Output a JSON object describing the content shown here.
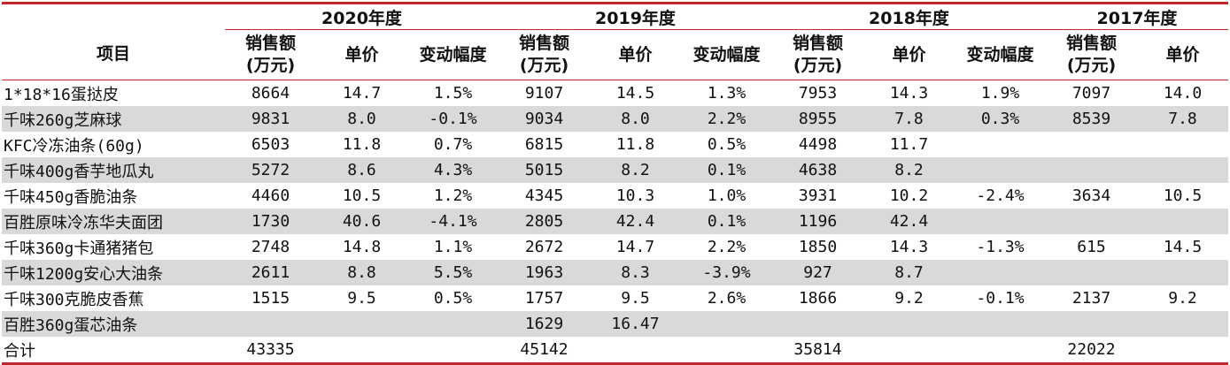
{
  "table": {
    "years": [
      "2020年度",
      "2019年度",
      "2018年度",
      "2017年度"
    ],
    "item_header": "项目",
    "col_headers": {
      "sales": [
        "销售额",
        "(万元)"
      ],
      "price": "单价",
      "change": "变动幅度"
    },
    "rows": [
      [
        "1*18*16蛋挞皮",
        "8664",
        "14.7",
        "1.5%",
        "9107",
        "14.5",
        "1.3%",
        "7953",
        "14.3",
        "1.9%",
        "7097",
        "14.0"
      ],
      [
        "千味260g芝麻球",
        "9831",
        "8.0",
        "-0.1%",
        "9034",
        "8.0",
        "2.2%",
        "8955",
        "7.8",
        "0.3%",
        "8539",
        "7.8"
      ],
      [
        "KFC冷冻油条(60g)",
        "6503",
        "11.8",
        "0.7%",
        "6815",
        "11.8",
        "0.5%",
        "4498",
        "11.7",
        "",
        "",
        ""
      ],
      [
        "千味400g香芋地瓜丸",
        "5272",
        "8.6",
        "4.3%",
        "5015",
        "8.2",
        "0.1%",
        "4638",
        "8.2",
        "",
        "",
        ""
      ],
      [
        "千味450g香脆油条",
        "4460",
        "10.5",
        "1.2%",
        "4345",
        "10.3",
        "1.0%",
        "3931",
        "10.2",
        "-2.4%",
        "3634",
        "10.5"
      ],
      [
        "百胜原味冷冻华夫面团",
        "1730",
        "40.6",
        "-4.1%",
        "2805",
        "42.4",
        "0.1%",
        "1196",
        "42.4",
        "",
        "",
        ""
      ],
      [
        "千味360g卡通猪猪包",
        "2748",
        "14.8",
        "1.1%",
        "2672",
        "14.7",
        "2.2%",
        "1850",
        "14.3",
        "-1.3%",
        "615",
        "14.5"
      ],
      [
        "千味1200g安心大油条",
        "2611",
        "8.8",
        "5.5%",
        "1963",
        "8.3",
        "-3.9%",
        "927",
        "8.7",
        "",
        "",
        ""
      ],
      [
        "千味300克脆皮香蕉",
        "1515",
        "9.5",
        "0.5%",
        "1757",
        "9.5",
        "2.6%",
        "1866",
        "9.2",
        "-0.1%",
        "2137",
        "9.2"
      ],
      [
        "百胜360g蛋芯油条",
        "",
        "",
        "",
        "1629",
        "16.47",
        "",
        "",
        "",
        "",
        "",
        ""
      ],
      [
        "合计",
        "43335",
        "",
        "",
        "45142",
        "",
        "",
        "35814",
        "",
        "",
        "22022",
        ""
      ]
    ]
  }
}
